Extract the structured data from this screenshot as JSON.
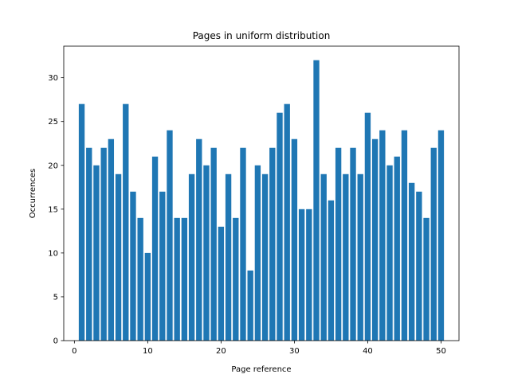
{
  "chart_data": {
    "type": "bar",
    "title": "Pages in uniform distribution",
    "xlabel": "Page reference",
    "ylabel": "Occurrences",
    "x": [
      1,
      2,
      3,
      4,
      5,
      6,
      7,
      8,
      9,
      10,
      11,
      12,
      13,
      14,
      15,
      16,
      17,
      18,
      19,
      20,
      21,
      22,
      23,
      24,
      25,
      26,
      27,
      28,
      29,
      30,
      31,
      32,
      33,
      34,
      35,
      36,
      37,
      38,
      39,
      40,
      41,
      42,
      43,
      44,
      45,
      46,
      47,
      48,
      49,
      50
    ],
    "values": [
      27,
      22,
      20,
      22,
      23,
      19,
      27,
      17,
      14,
      10,
      21,
      17,
      24,
      14,
      14,
      19,
      23,
      20,
      22,
      13,
      19,
      14,
      22,
      8,
      20,
      19,
      22,
      26,
      27,
      23,
      15,
      15,
      32,
      19,
      16,
      22,
      19,
      22,
      19,
      26,
      23,
      24,
      20,
      21,
      24,
      18,
      17,
      14,
      22,
      24
    ],
    "xlim": [
      -1.45,
      52.45
    ],
    "ylim": [
      0,
      33.6
    ],
    "xticks": [
      0,
      10,
      20,
      30,
      40,
      50
    ],
    "yticks": [
      0,
      5,
      10,
      15,
      20,
      25,
      30
    ],
    "bar_color": "#1f77b4",
    "grid": false,
    "legend": "none"
  }
}
